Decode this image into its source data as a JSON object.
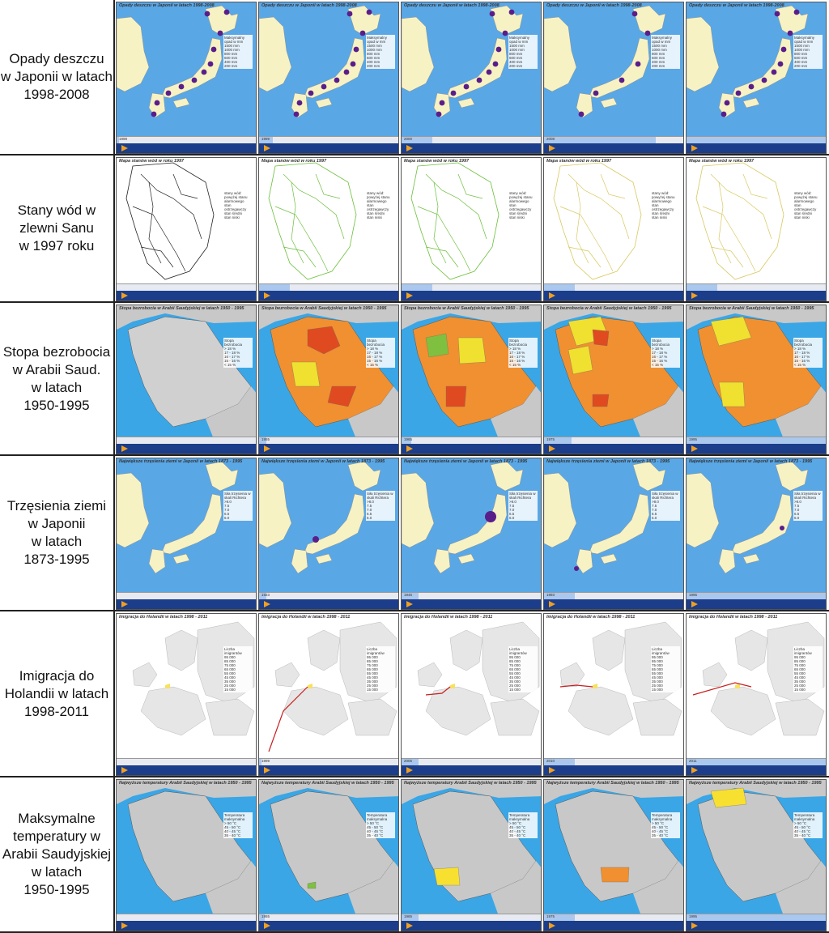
{
  "rows": [
    {
      "id": "rain",
      "label": "Opady deszczu\nw Japonii w latach\n1998-2008",
      "map": "japan",
      "theme": "rain",
      "title": "Opady deszczu w Japonii w latach 1998-2008",
      "timeline_start": "1998",
      "frame_years": [
        "1998",
        "1999",
        "2000",
        "2008",
        ""
      ],
      "frame_progress": [
        0.02,
        0.1,
        0.22,
        0.8,
        1.0
      ],
      "legend_title": "Maksymalny opad w mm",
      "legend_values": [
        "1500 mm",
        "1000 mm",
        "800 mm",
        "600 mm",
        "400 mm",
        "200 mm"
      ]
    },
    {
      "id": "san",
      "label": "Stany wód w\nzlewni Sanu\nw 1997 roku",
      "map": "river",
      "theme": "river",
      "title": "Mapa stanów wód w roku 1997",
      "timeline_start": "",
      "frame_years": [
        "",
        "",
        "",
        "",
        ""
      ],
      "frame_progress": [
        0,
        0.22,
        0.22,
        0.22,
        0.22
      ],
      "legend_title": "stany wód:",
      "legend_values": [
        "powyżej stanu alarmowego",
        "stan ostrzegawczy",
        "stan średni",
        "stan niski"
      ]
    },
    {
      "id": "unemp",
      "label": "Stopa bezrobocia\nw Arabii Saud.\nw latach\n1950-1995",
      "map": "saudi",
      "theme": "unemp",
      "title": "Stopa bezrobocia w Arabii Saudyjskiej w latach 1950 - 1995",
      "timeline_start": "",
      "frame_years": [
        "",
        "1955",
        "1965",
        "1975",
        "1995"
      ],
      "frame_progress": [
        0,
        0.05,
        0.07,
        0.2,
        1.0
      ],
      "legend_title": "Stopa bezrobocia",
      "legend_values": [
        "> 18 %",
        "17 - 18 %",
        "16 - 17 %",
        "15 - 16 %",
        "< 15 %"
      ]
    },
    {
      "id": "quake",
      "label": "Trzęsienia ziemi\nw Japonii\nw latach\n1873-1995",
      "map": "japan",
      "theme": "quake",
      "title": "Największe trzęsienia ziemi w Japonii w latach 1873 - 1995",
      "timeline_start": "",
      "frame_years": [
        "",
        "1923",
        "1946",
        "1993",
        "1995"
      ],
      "frame_progress": [
        0,
        0.05,
        0.12,
        0.22,
        1.0
      ],
      "legend_title": "Siła trzęsienia w skali Richtera",
      "legend_values": [
        ">8.0",
        "7.5",
        "7.0",
        "6.5",
        "6.0"
      ]
    },
    {
      "id": "immig",
      "label": "Imigracja do\nHolandii w latach\n1998-2011",
      "map": "europe",
      "theme": "immig",
      "title": "Imigracja do Holandii w latach 1998 - 2011",
      "timeline_start": "",
      "frame_years": [
        "",
        "1999",
        "2005",
        "2010",
        "2011"
      ],
      "frame_progress": [
        0,
        0.02,
        0.12,
        0.22,
        1.0
      ],
      "legend_title": "Liczba imigrantów",
      "legend_values": [
        "95 000",
        "85 000",
        "75 000",
        "65 000",
        "55 000",
        "45 000",
        "35 000",
        "25 000",
        "15 000"
      ]
    },
    {
      "id": "temp",
      "label": "Maksymalne\ntemperatury w\nArabii Saudyjskiej\nw latach\n1950-1995",
      "map": "saudi",
      "theme": "temp",
      "title": "Najwyższe temperatury Arabii Saudyjskiej w latach 1950 - 1995",
      "timeline_start": "",
      "frame_years": [
        "",
        "1955",
        "1965",
        "1975",
        "1995"
      ],
      "frame_progress": [
        0,
        0.04,
        0.12,
        0.22,
        1.0
      ],
      "legend_title": "Temperatura maksymalna",
      "legend_values": [
        "> 50 °C",
        "45 - 50 °C",
        "40 - 45 °C",
        "35 - 40 °C"
      ]
    }
  ],
  "colors": {
    "sea": "#5aa7e6",
    "land": "#f7f2c4",
    "dot": "#5a1e8a",
    "saudi_land": "#c8c8c8",
    "saudi_sea": "#3aa6e6",
    "euro_land": "#e6e6e6"
  }
}
